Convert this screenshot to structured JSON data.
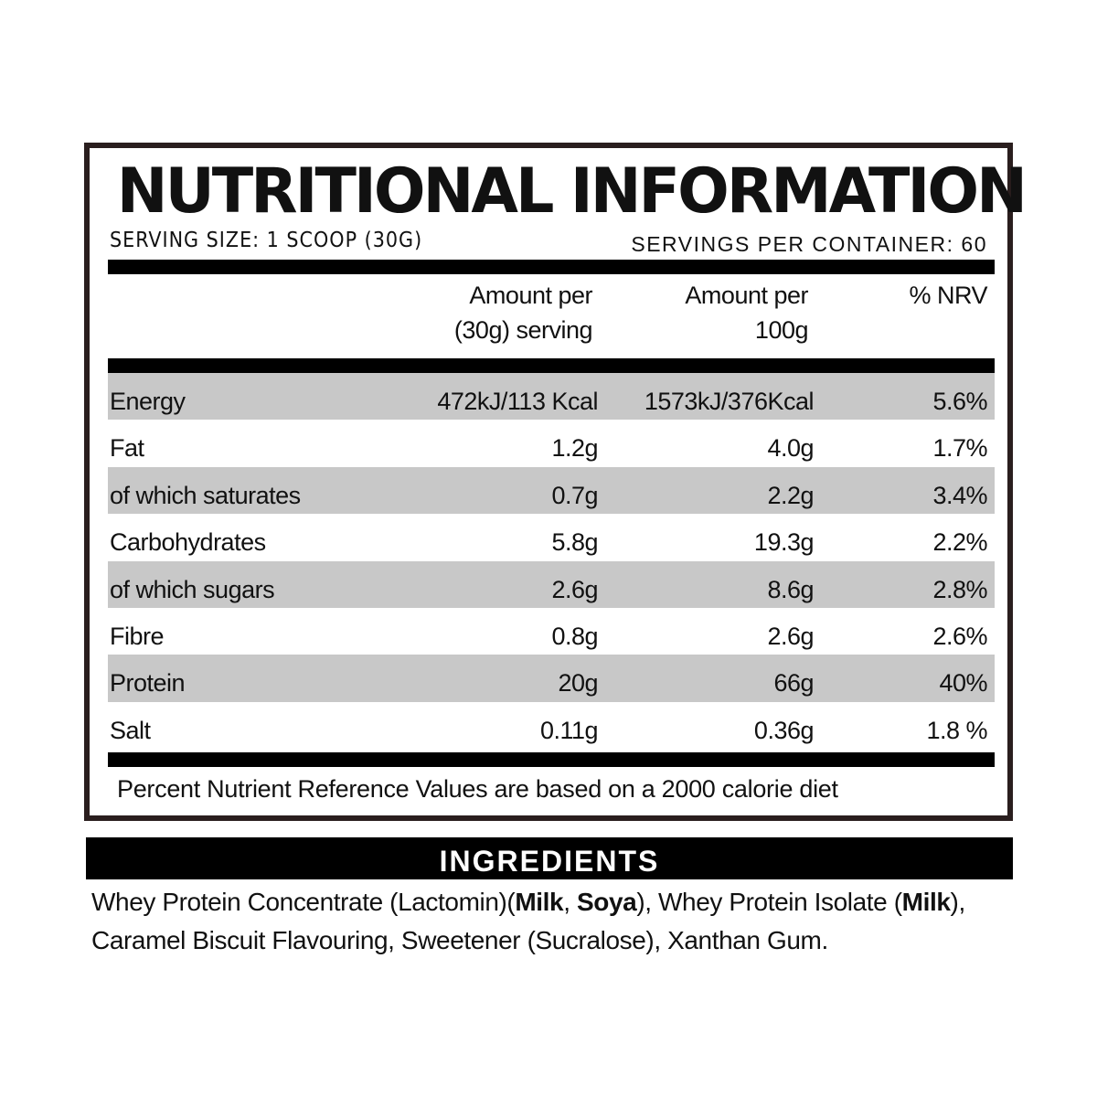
{
  "title": "NUTRITIONAL INFORMATION",
  "serving_size": "SERVING SIZE: 1 SCOOP (30G)",
  "servings_per_container": "SERVINGS PER CONTAINER:  60",
  "columns": {
    "per_serving_line1": "Amount per",
    "per_serving_line2": "(30g) serving",
    "per_100g_line1": "Amount per",
    "per_100g_line2": "100g",
    "nrv": "% NRV"
  },
  "rows": [
    {
      "name": "Energy",
      "per_serving": "472kJ/113 Kcal",
      "per_100g": "1573kJ/376Kcal",
      "nrv": "5.6%"
    },
    {
      "name": "Fat",
      "per_serving": "1.2g",
      "per_100g": "4.0g",
      "nrv": "1.7%"
    },
    {
      "name": "of which saturates",
      "per_serving": "0.7g",
      "per_100g": "2.2g",
      "nrv": "3.4%"
    },
    {
      "name": "Carbohydrates",
      "per_serving": "5.8g",
      "per_100g": "19.3g",
      "nrv": "2.2%"
    },
    {
      "name": "of which sugars",
      "per_serving": "2.6g",
      "per_100g": "8.6g",
      "nrv": "2.8%"
    },
    {
      "name": "Fibre",
      "per_serving": "0.8g",
      "per_100g": "2.6g",
      "nrv": "2.6%"
    },
    {
      "name": "Protein",
      "per_serving": "20g",
      "per_100g": "66g",
      "nrv": "40%"
    },
    {
      "name": "Salt",
      "per_serving": "0.11g",
      "per_100g": "0.36g",
      "nrv": "1.8 %"
    }
  ],
  "footnote": "Percent Nutrient Reference Values are based on a 2000 calorie diet",
  "ingredients": {
    "heading": "INGREDIENTS",
    "parts": [
      {
        "text": "Whey Protein Concentrate (Lactomin)(",
        "bold": false
      },
      {
        "text": "Milk",
        "bold": true
      },
      {
        "text": ", ",
        "bold": false
      },
      {
        "text": "Soya",
        "bold": true
      },
      {
        "text": "), Whey Protein Isolate (",
        "bold": false
      },
      {
        "text": "Milk",
        "bold": true
      },
      {
        "text": "), Caramel Biscuit Flavouring, Sweetener (Sucralose), Xanthan Gum.",
        "bold": false
      }
    ]
  },
  "colors": {
    "border": "#2a1e1e",
    "rule": "#000000",
    "shade": "#c8c8c8",
    "heading_bar_bg": "#000000",
    "heading_bar_text": "#ffffff"
  }
}
